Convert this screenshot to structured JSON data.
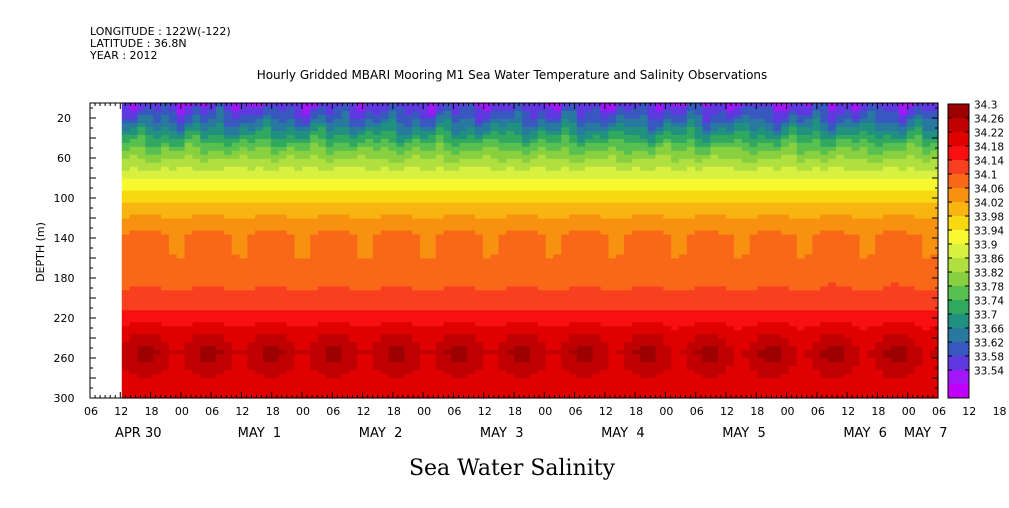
{
  "header": {
    "lines": [
      "LONGITUDE : 122W(-122)",
      "LATITUDE : 36.8N",
      "YEAR : 2012"
    ]
  },
  "chart_data": {
    "type": "heatmap",
    "title": "Hourly Gridded MBARI Mooring M1 Sea Water Temperature and Salinity Observations",
    "xlabel": "Sea Water Salinity",
    "ylabel": "DEPTH (m)",
    "y_ticks": [
      20,
      60,
      100,
      140,
      180,
      220,
      260,
      300
    ],
    "ylim": [
      300,
      5
    ],
    "x_hour_ticks": [
      "06",
      "12",
      "18",
      "00",
      "06",
      "12",
      "18",
      "00",
      "06",
      "12",
      "18",
      "00",
      "06",
      "12",
      "18",
      "00",
      "06",
      "12",
      "18",
      "00",
      "06",
      "12",
      "18",
      "00",
      "06",
      "12",
      "18",
      "00",
      "06",
      "12",
      "18",
      "00",
      "06"
    ],
    "x_day_labels": [
      "APR 30",
      "MAY  1",
      "MAY  2",
      "MAY  3",
      "MAY  4",
      "MAY  5",
      "MAY  6",
      "MAY  7"
    ],
    "xlim_hours": [
      0,
      168
    ],
    "data_start_hour": 6.3,
    "colorbar_levels": [
      "34.3",
      "34.26",
      "34.22",
      "34.18",
      "34.14",
      "34.1",
      "34.06",
      "34.02",
      "33.98",
      "33.94",
      "33.9",
      "33.86",
      "33.82",
      "33.78",
      "33.74",
      "33.7",
      "33.66",
      "33.62",
      "33.58",
      "33.54"
    ],
    "colorbar_colors": [
      "#9c0000",
      "#c00000",
      "#e00000",
      "#f81010",
      "#f84020",
      "#f86818",
      "#f89010",
      "#f8b410",
      "#f8d810",
      "#f8f830",
      "#d8f040",
      "#b0e040",
      "#88d040",
      "#58c050",
      "#30a860",
      "#209080",
      "#2878a0",
      "#3858c0",
      "#6038e0",
      "#a018f8",
      "#c000f8"
    ],
    "depth_profile": [
      {
        "depth": 5,
        "value": 33.6
      },
      {
        "depth": 20,
        "value": 33.66
      },
      {
        "depth": 35,
        "value": 33.74
      },
      {
        "depth": 50,
        "value": 33.82
      },
      {
        "depth": 65,
        "value": 33.88
      },
      {
        "depth": 85,
        "value": 33.96
      },
      {
        "depth": 110,
        "value": 34.04
      },
      {
        "depth": 140,
        "value": 34.11
      },
      {
        "depth": 170,
        "value": 34.12
      },
      {
        "depth": 200,
        "value": 34.15
      },
      {
        "depth": 220,
        "value": 34.2
      },
      {
        "depth": 240,
        "value": 34.26
      },
      {
        "depth": 255,
        "value": 34.29
      },
      {
        "depth": 270,
        "value": 34.27
      },
      {
        "depth": 290,
        "value": 34.23
      },
      {
        "depth": 300,
        "value": 34.22
      }
    ],
    "grid": false,
    "legend": "colorbar-right"
  }
}
